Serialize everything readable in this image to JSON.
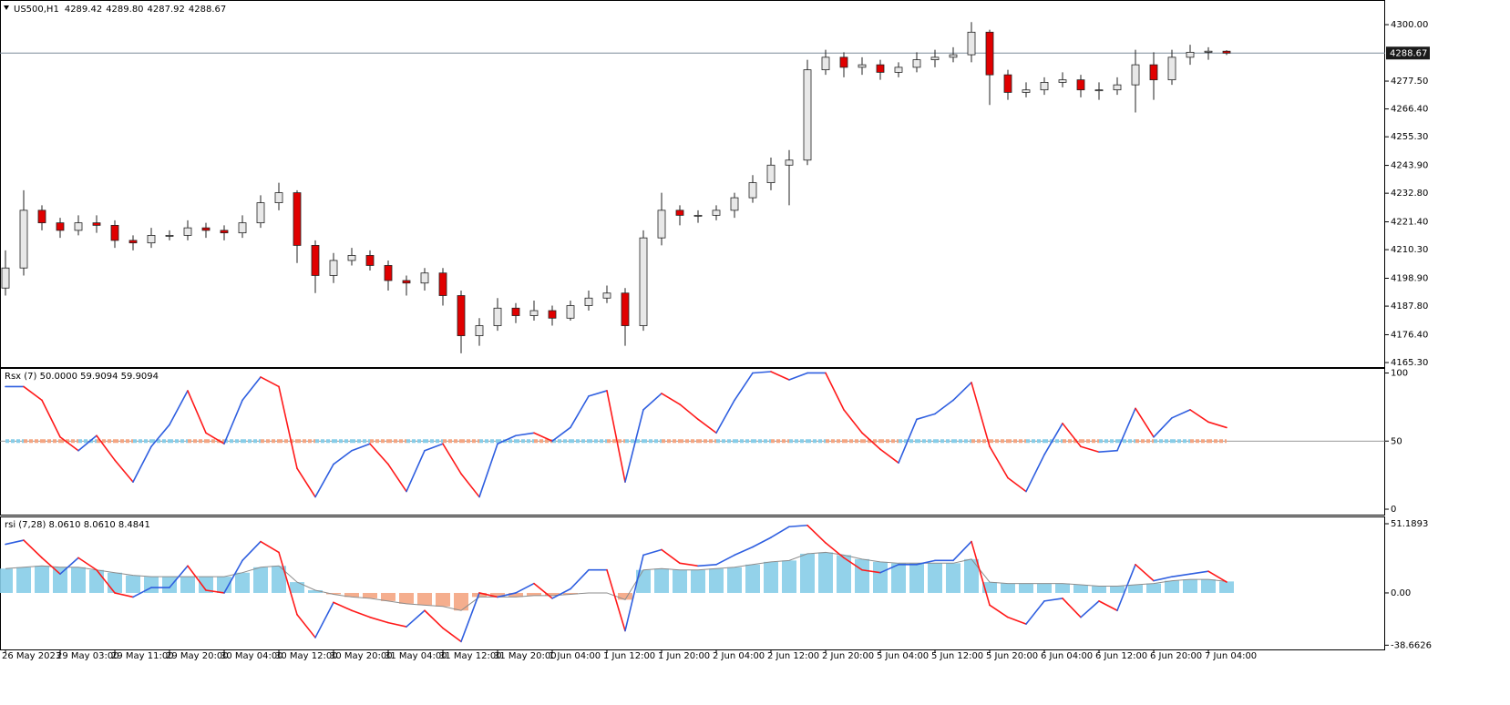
{
  "chart_data": [
    {
      "type": "candlestick",
      "title": "US500,H1",
      "header_values": [
        "4289.42",
        "4289.80",
        "4287.92",
        "4288.67"
      ],
      "categories": [
        "26 May 2023",
        null,
        null,
        "29 May 03:00",
        null,
        null,
        "29 May 11:00",
        null,
        null,
        "29 May 20:00",
        null,
        null,
        "30 May 04:00",
        null,
        null,
        "30 May 12:00",
        null,
        null,
        "30 May 20:00",
        null,
        null,
        "31 May 04:00",
        null,
        null,
        "31 May 12:00",
        null,
        null,
        "31 May 20:00",
        null,
        null,
        "1 Jun 04:00",
        null,
        null,
        "1 Jun 12:00",
        null,
        null,
        "1 Jun 20:00",
        null,
        null,
        "2 Jun 04:00",
        null,
        null,
        "2 Jun 12:00",
        null,
        null,
        "2 Jun 20:00",
        null,
        null,
        "5 Jun 04:00",
        null,
        null,
        "5 Jun 12:00",
        null,
        null,
        "5 Jun 20:00",
        null,
        null,
        "6 Jun 04:00",
        null,
        null,
        "6 Jun 12:00",
        null,
        null,
        "6 Jun 20:00",
        null,
        null,
        "7 Jun 04:00",
        null
      ],
      "open": [
        4195,
        4203,
        4226,
        4221,
        4218,
        4221,
        4220,
        4214,
        4213,
        4216,
        4216,
        4219,
        4218,
        4217,
        4221,
        4229,
        4233,
        4212,
        4200,
        4206,
        4208,
        4204,
        4198,
        4197,
        4201,
        4192,
        4176,
        4180,
        4187,
        4184,
        4186,
        4183,
        4188,
        4191,
        4193,
        4180,
        4215,
        4226,
        4224,
        4224,
        4226,
        4231,
        4237,
        4244,
        4246,
        4282,
        4287,
        4283,
        4284,
        4281,
        4283,
        4286,
        4287,
        4288,
        4297,
        4280,
        4273,
        4274,
        4277,
        4278,
        4274,
        4274,
        4276,
        4284,
        4278,
        4287,
        4289,
        4289.42
      ],
      "high": [
        4210,
        4234,
        4228,
        4223,
        4224,
        4224,
        4222,
        4216,
        4219,
        4218,
        4222,
        4221,
        4220,
        4224,
        4232,
        4237,
        4234,
        4214,
        4209,
        4211,
        4210,
        4206,
        4200,
        4203,
        4203,
        4194,
        4183,
        4191,
        4189,
        4190,
        4188,
        4190,
        4194,
        4196,
        4195,
        4218,
        4233,
        4228,
        4226,
        4228,
        4233,
        4240,
        4247,
        4250,
        4286,
        4290,
        4289,
        4287,
        4286,
        4285,
        4289,
        4290,
        4291,
        4301,
        4298,
        4282,
        4277,
        4279,
        4281,
        4280,
        4277,
        4279,
        4290,
        4289,
        4290,
        4292,
        4291,
        4289.8
      ],
      "low": [
        4192,
        4200,
        4218,
        4215,
        4216,
        4217,
        4211,
        4210,
        4211,
        4214,
        4214,
        4215,
        4214,
        4215,
        4219,
        4226,
        4205,
        4193,
        4197,
        4204,
        4202,
        4194,
        4192,
        4194,
        4188,
        4169,
        4172,
        4178,
        4181,
        4182,
        4180,
        4182,
        4186,
        4189,
        4172,
        4178,
        4212,
        4220,
        4221,
        4222,
        4223,
        4229,
        4234,
        4228,
        4244,
        4280,
        4279,
        4280,
        4278,
        4279,
        4281,
        4283,
        4285,
        4285,
        4268,
        4270,
        4271,
        4272,
        4275,
        4271,
        4270,
        4272,
        4265,
        4270,
        4276,
        4284,
        4286,
        4287.92
      ],
      "close": [
        4203,
        4226,
        4221,
        4218,
        4221,
        4220,
        4214,
        4213,
        4216,
        4216,
        4219,
        4218,
        4217,
        4221,
        4229,
        4233,
        4212,
        4200,
        4206,
        4208,
        4204,
        4198,
        4197,
        4201,
        4192,
        4176,
        4180,
        4187,
        4184,
        4186,
        4183,
        4188,
        4191,
        4193,
        4180,
        4215,
        4226,
        4224,
        4224,
        4226,
        4231,
        4237,
        4244,
        4246,
        4282,
        4287,
        4283,
        4284,
        4281,
        4283,
        4286,
        4287,
        4288,
        4297,
        4280,
        4273,
        4274,
        4277,
        4278,
        4274,
        4274,
        4276,
        4284,
        4278,
        4287,
        4289,
        4289.42,
        4288.67
      ],
      "up_color": "#e8e8e8",
      "down_color": "#e00000",
      "outline_color": "#222222",
      "price_line_color": "#7a8a99",
      "ylim": [
        4163.5,
        4309.1
      ],
      "yticks": [
        {
          "value": 4300,
          "label": "4300.00"
        },
        {
          "value": 4277.5,
          "label": "4277.50"
        },
        {
          "value": 4266.4,
          "label": "4266.40"
        },
        {
          "value": 4255.3,
          "label": "4255.30"
        },
        {
          "value": 4243.9,
          "label": "4243.90"
        },
        {
          "value": 4232.8,
          "label": "4232.80"
        },
        {
          "value": 4221.4,
          "label": "4221.40"
        },
        {
          "value": 4210.3,
          "label": "4210.30"
        },
        {
          "value": 4198.9,
          "label": "4198.90"
        },
        {
          "value": 4187.8,
          "label": "4187.80"
        },
        {
          "value": 4176.4,
          "label": "4176.40"
        },
        {
          "value": 4165.3,
          "label": "4165.30"
        }
      ]
    },
    {
      "type": "slope-line",
      "title": "Rsx (7) 50.0000 59.9094 59.9094",
      "values": [
        90,
        90,
        80,
        53,
        43,
        54,
        36,
        20,
        46,
        62,
        87,
        56,
        48,
        80,
        97,
        90,
        30,
        9,
        33,
        43,
        48,
        33,
        13,
        43,
        48,
        26,
        9,
        48,
        54,
        56,
        50,
        60,
        83,
        87,
        20,
        73,
        85,
        77,
        66,
        56,
        80,
        100,
        101,
        95,
        100,
        100,
        73,
        56,
        44,
        34,
        66,
        70,
        80,
        93,
        46,
        23,
        13,
        40,
        63,
        46,
        42,
        43,
        74,
        53,
        67,
        73,
        64,
        59.9094
      ],
      "up_color": "#2f5fe0",
      "down_color": "#ff1a1a",
      "level_up_color": "#87cde8",
      "level_down_color": "#f4a582",
      "ylim": [
        -4,
        103
      ],
      "yticks": [
        100,
        50,
        0
      ]
    },
    {
      "type": "slope-line-histogram",
      "title": "rsi  (7,28) 8.0610 8.0610 8.4841",
      "values": [
        36,
        39,
        26,
        14,
        26,
        17,
        0,
        -3,
        4,
        4,
        20,
        2,
        0,
        24,
        38,
        30,
        -16,
        -33,
        -7,
        -13,
        -18,
        -22,
        -25,
        -13,
        -26,
        -36,
        0,
        -3,
        0,
        7,
        -4,
        3,
        17,
        17,
        -28,
        28,
        32,
        22,
        20,
        21,
        28,
        34,
        41,
        49,
        50,
        37,
        26,
        17,
        15,
        21,
        21,
        24,
        24,
        38,
        -9,
        -18,
        -23,
        -6,
        -4,
        -18,
        -6,
        -13,
        21,
        9,
        12,
        14,
        16,
        8.061
      ],
      "signal": [
        18,
        19,
        20,
        19,
        19,
        17,
        15,
        13,
        12,
        12,
        12,
        12,
        12,
        15,
        19,
        20,
        8,
        2,
        -1,
        -3,
        -4,
        -6,
        -8,
        -9,
        -10,
        -13,
        -3,
        -3,
        -3,
        -2,
        -2,
        -1,
        0,
        0,
        -5,
        17,
        18,
        17,
        17,
        18,
        19,
        21,
        23,
        24,
        29,
        30,
        28,
        25,
        23,
        22,
        22,
        22,
        22,
        25,
        8,
        7,
        7,
        7,
        7,
        6,
        5,
        5,
        6,
        7,
        9,
        10,
        10,
        8.4841
      ],
      "up_color": "#2f5fe0",
      "down_color": "#ff1a1a",
      "hist_pos_color": "#87cde8",
      "hist_neg_color": "#f4a582",
      "signal_color": "#8c8c8c",
      "ylim": [
        -41.8,
        55.9
      ],
      "yticks": [
        {
          "value": 51.1893,
          "label": "51.1893"
        },
        {
          "value": 0,
          "label": "0.00"
        },
        {
          "value": -38.6626,
          "label": "-38.6626"
        }
      ]
    }
  ]
}
